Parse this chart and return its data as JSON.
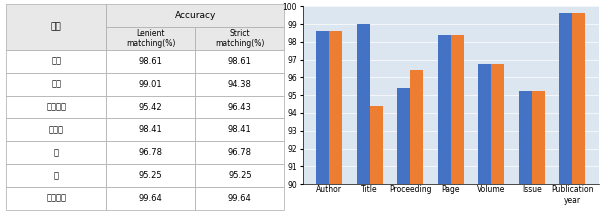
{
  "table": {
    "headers": [
      "속성",
      "Accuracy"
    ],
    "sub_headers": [
      "Lenient\nmatching(%)",
      "Strict\nmatching(%)"
    ],
    "rows": [
      [
        "저자",
        "98.61",
        "98.61"
      ],
      [
        "제목",
        "99.01",
        "94.38"
      ],
      [
        "프로시딩",
        "95.42",
        "96.43"
      ],
      [
        "페이지",
        "98.41",
        "98.41"
      ],
      [
        "권",
        "96.78",
        "96.78"
      ],
      [
        "호",
        "95.25",
        "95.25"
      ],
      [
        "출판년도",
        "99.64",
        "99.64"
      ]
    ],
    "header_bg": "#e8e8e8",
    "border_color": "#aaaaaa",
    "text_color": "#000000"
  },
  "chart": {
    "categories": [
      "Author",
      "Title",
      "Proceeding",
      "Page",
      "Volume",
      "Issue",
      "Publication\nyear"
    ],
    "lenient": [
      98.61,
      99.01,
      95.42,
      98.41,
      96.78,
      95.25,
      99.64
    ],
    "strict": [
      98.61,
      94.38,
      96.43,
      98.41,
      96.78,
      95.25,
      99.64
    ],
    "lenient_color": "#4472C4",
    "strict_color": "#ED7D31",
    "ylim": [
      90,
      100
    ],
    "yticks": [
      90,
      91,
      92,
      93,
      94,
      95,
      96,
      97,
      98,
      99,
      100
    ],
    "legend_lenient": "Lenient matching (%)",
    "legend_strict": "Strict matching (%)",
    "bg_color": "#dce6f1"
  }
}
